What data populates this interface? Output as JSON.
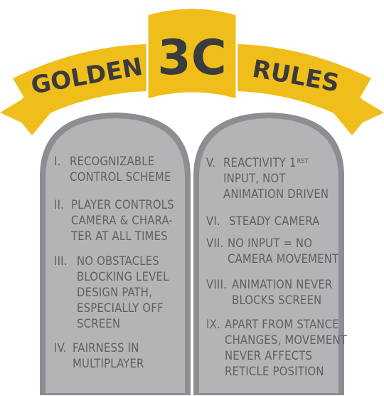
{
  "banner": {
    "left_word": "GOLDEN",
    "center_word": "3C",
    "right_word": "RULES",
    "color_gold": "#f0be1a",
    "color_dark_gold": "#c9950f",
    "color_text": "#3a3b3d"
  },
  "tablets": {
    "color_stone": "#b3b4b6",
    "color_stone_edge": "#8d8e91",
    "color_text": "#5f6064"
  },
  "rules": [
    {
      "numeral": "I.",
      "line1": "RECOGNIZABLE",
      "line2": "CONTROL SCHEME",
      "line3": "",
      "line4": "",
      "line5": ""
    },
    {
      "numeral": "II.",
      "line1": "PLAYER CONTROLS",
      "line2": "CAMERA & CHARA-",
      "line3": "TER AT ALL TIMES",
      "line4": "",
      "line5": ""
    },
    {
      "numeral": "III.",
      "line1": "NO OBSTACLES",
      "line2": "BLOCKING LEVEL",
      "line3": "DESIGN PATH,",
      "line4": "ESPECIALLY OFF",
      "line5": "SCREEN"
    },
    {
      "numeral": "IV.",
      "line1": "FAIRNESS IN",
      "line2": "MULTIPLAYER",
      "line3": "",
      "line4": "",
      "line5": ""
    },
    {
      "numeral": "V.",
      "line1": "REACTIVITY 1",
      "line1_sup": "RST",
      "line2": "INPUT, NOT",
      "line3": "ANIMATION DRIVEN",
      "line4": "",
      "line5": ""
    },
    {
      "numeral": "VI.",
      "line1": "STEADY CAMERA",
      "line2": "",
      "line3": "",
      "line4": "",
      "line5": ""
    },
    {
      "numeral": "VII.",
      "line1": "NO INPUT = NO",
      "line2": "CAMERA MOVEMENT",
      "line3": "",
      "line4": "",
      "line5": ""
    },
    {
      "numeral": "VIII.",
      "line1": "ANIMATION NEVER",
      "line2": "BLOCKS SCREEN",
      "line3": "",
      "line4": "",
      "line5": ""
    },
    {
      "numeral": "IX.",
      "line1": "APART FROM STANCE",
      "line2": "CHANGES, MOVEMENT",
      "line3": "NEVER AFFECTS",
      "line4": "RETICLE POSITION",
      "line5": ""
    }
  ]
}
